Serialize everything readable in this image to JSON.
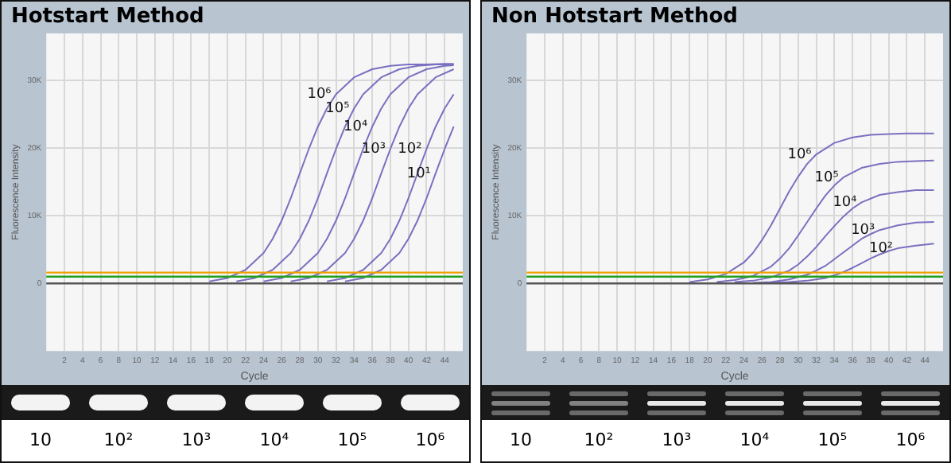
{
  "chart_data": [
    {
      "type": "line",
      "title": "Hotstart Method",
      "xlabel": "Cycle",
      "ylabel": "Fluorescence Intensity",
      "xlim": [
        0,
        46
      ],
      "ylim": [
        -10000,
        37000
      ],
      "xticks": [
        2,
        4,
        6,
        8,
        10,
        12,
        14,
        16,
        18,
        20,
        22,
        24,
        26,
        28,
        30,
        32,
        34,
        36,
        38,
        40,
        42,
        44
      ],
      "yticks": [
        {
          "value": 0,
          "label": "0"
        },
        {
          "value": 10000,
          "label": "10K"
        },
        {
          "value": 20000,
          "label": "20K"
        },
        {
          "value": 30000,
          "label": "30K"
        }
      ],
      "grid": true,
      "legend": false,
      "marker": "none",
      "ref_lines": [
        {
          "axis": "y",
          "value": 1600,
          "color": "#f0a000"
        },
        {
          "axis": "y",
          "value": 1000,
          "color": "#20a020"
        },
        {
          "axis": "y",
          "value": 0,
          "color": "#555555"
        }
      ],
      "series": [
        {
          "name": "10⁶",
          "color": "#7a70c0",
          "x": [
            18,
            20,
            22,
            24,
            25,
            26,
            27,
            28,
            29,
            30,
            31,
            32,
            34,
            36,
            38,
            40,
            42,
            44,
            45
          ],
          "values": [
            300,
            800,
            2000,
            4500,
            6600,
            9300,
            12600,
            16300,
            19900,
            23200,
            25900,
            28000,
            30500,
            31700,
            32200,
            32400,
            32400,
            32500,
            32500
          ]
        },
        {
          "name": "10⁵",
          "color": "#7a70c0",
          "x": [
            21,
            23,
            25,
            27,
            28,
            29,
            30,
            31,
            32,
            33,
            34,
            35,
            37,
            39,
            41,
            43,
            45
          ],
          "values": [
            300,
            800,
            2000,
            4500,
            6600,
            9300,
            12600,
            16300,
            19900,
            23200,
            25900,
            28000,
            30500,
            31700,
            32200,
            32400,
            32400
          ]
        },
        {
          "name": "10⁴",
          "color": "#7a70c0",
          "x": [
            24,
            26,
            28,
            30,
            31,
            32,
            33,
            34,
            35,
            36,
            37,
            38,
            40,
            42,
            44,
            45
          ],
          "values": [
            300,
            800,
            2000,
            4500,
            6600,
            9300,
            12600,
            16300,
            19900,
            23200,
            25900,
            28000,
            30500,
            31700,
            32200,
            32300
          ]
        },
        {
          "name": "10³",
          "color": "#7a70c0",
          "x": [
            27,
            29,
            31,
            33,
            34,
            35,
            36,
            37,
            38,
            39,
            40,
            41,
            43,
            45
          ],
          "values": [
            300,
            800,
            2000,
            4500,
            6600,
            9300,
            12600,
            16300,
            19900,
            23200,
            25900,
            28000,
            30500,
            31700
          ]
        },
        {
          "name": "10²",
          "color": "#7a70c0",
          "x": [
            31,
            33,
            35,
            37,
            38,
            39,
            40,
            41,
            42,
            43,
            44,
            45
          ],
          "values": [
            300,
            800,
            2000,
            4500,
            6600,
            9300,
            12600,
            16300,
            19900,
            23200,
            25900,
            28000
          ]
        },
        {
          "name": "10¹",
          "color": "#7a70c0",
          "x": [
            33,
            35,
            37,
            39,
            40,
            41,
            42,
            43,
            44,
            45
          ],
          "values": [
            300,
            800,
            2000,
            4500,
            6600,
            9300,
            12600,
            16300,
            19900,
            23200
          ]
        }
      ],
      "annotations": [
        "10",
        "10²",
        "10³",
        "10⁴",
        "10⁵",
        "10⁶"
      ]
    },
    {
      "type": "line",
      "title": "Non Hotstart Method",
      "xlabel": "Cycle",
      "ylabel": "Fluorescence Intensity",
      "xlim": [
        0,
        46
      ],
      "ylim": [
        -10000,
        37000
      ],
      "xticks": [
        2,
        4,
        6,
        8,
        10,
        12,
        14,
        16,
        18,
        20,
        22,
        24,
        26,
        28,
        30,
        32,
        34,
        36,
        38,
        40,
        42,
        44
      ],
      "yticks": [
        {
          "value": 0,
          "label": "0"
        },
        {
          "value": 10000,
          "label": "10K"
        },
        {
          "value": 20000,
          "label": "20K"
        },
        {
          "value": 30000,
          "label": "30K"
        }
      ],
      "grid": true,
      "legend": false,
      "marker": "none",
      "ref_lines": [
        {
          "axis": "y",
          "value": 1600,
          "color": "#f0a000"
        },
        {
          "axis": "y",
          "value": 1000,
          "color": "#20a020"
        },
        {
          "axis": "y",
          "value": 0,
          "color": "#555555"
        }
      ],
      "series": [
        {
          "name": "10⁶",
          "color": "#7a70c0",
          "x": [
            18,
            20,
            22,
            24,
            25,
            26,
            27,
            28,
            29,
            30,
            31,
            32,
            34,
            36,
            38,
            40,
            42,
            45
          ],
          "values": [
            200,
            600,
            1400,
            3100,
            4500,
            6400,
            8600,
            11100,
            13600,
            15800,
            17700,
            19100,
            20800,
            21600,
            22000,
            22100,
            22200,
            22200
          ]
        },
        {
          "name": "10⁵",
          "color": "#7a70c0",
          "x": [
            21,
            23,
            25,
            27,
            28,
            29,
            30,
            31,
            32,
            33,
            34,
            35,
            37,
            39,
            41,
            43,
            45
          ],
          "values": [
            200,
            500,
            1100,
            2500,
            3700,
            5200,
            7100,
            9100,
            11100,
            13000,
            14500,
            15700,
            17100,
            17700,
            18000,
            18100,
            18200
          ]
        },
        {
          "name": "10⁴",
          "color": "#7a70c0",
          "x": [
            23,
            25,
            27,
            29,
            30,
            31,
            32,
            33,
            34,
            35,
            36,
            37,
            39,
            41,
            43,
            45
          ],
          "values": [
            200,
            400,
            900,
            1900,
            2800,
            4000,
            5400,
            7000,
            8500,
            9900,
            11100,
            12000,
            13100,
            13500,
            13800,
            13800
          ]
        },
        {
          "name": "10³",
          "color": "#7a70c0",
          "x": [
            25,
            27,
            29,
            31,
            32,
            33,
            34,
            35,
            36,
            37,
            38,
            39,
            41,
            43,
            45
          ],
          "values": [
            100,
            200,
            600,
            1300,
            1900,
            2600,
            3600,
            4600,
            5600,
            6600,
            7300,
            7900,
            8600,
            9000,
            9100
          ]
        },
        {
          "name": "10²",
          "color": "#7a70c0",
          "x": [
            27,
            29,
            31,
            33,
            34,
            35,
            36,
            37,
            38,
            39,
            40,
            41,
            43,
            45
          ],
          "values": [
            100,
            200,
            400,
            800,
            1200,
            1700,
            2300,
            3000,
            3700,
            4300,
            4800,
            5200,
            5600,
            5900
          ]
        }
      ],
      "annotations": [
        "10",
        "10²",
        "10³",
        "10⁴",
        "10⁵",
        "10⁶"
      ]
    }
  ]
}
